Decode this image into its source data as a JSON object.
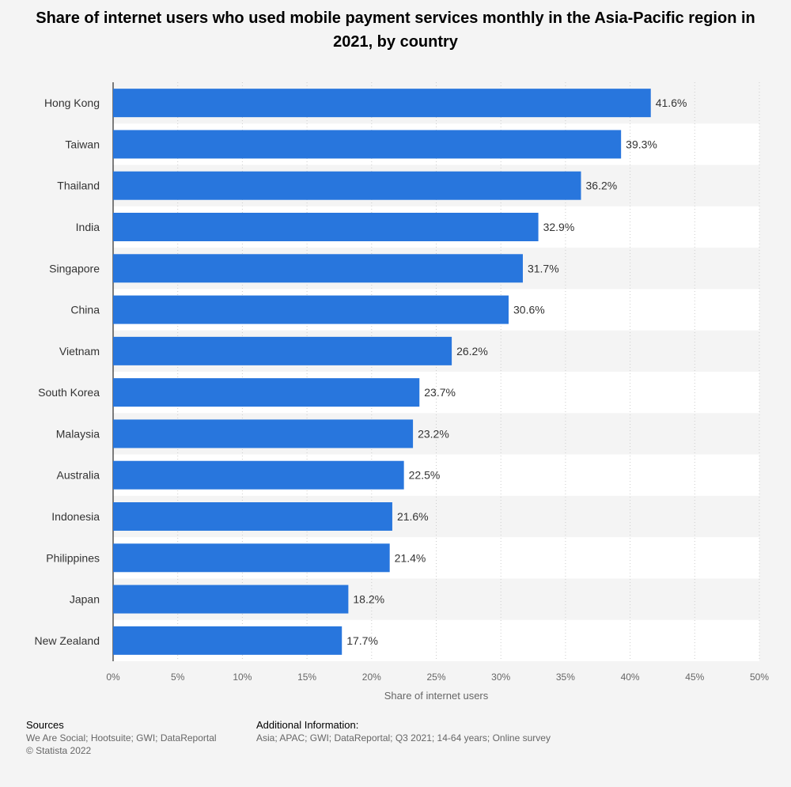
{
  "title": "Share of internet users who used mobile payment services monthly in the Asia-Pacific region in 2021, by country",
  "chart_data": {
    "type": "bar",
    "orientation": "horizontal",
    "categories": [
      "Hong Kong",
      "Taiwan",
      "Thailand",
      "India",
      "Singapore",
      "China",
      "Vietnam",
      "South Korea",
      "Malaysia",
      "Australia",
      "Indonesia",
      "Philippines",
      "Japan",
      "New Zealand"
    ],
    "values": [
      41.6,
      39.3,
      36.2,
      32.9,
      31.7,
      30.6,
      26.2,
      23.7,
      23.2,
      22.5,
      21.6,
      21.4,
      18.2,
      17.7
    ],
    "value_labels": [
      "41.6%",
      "39.3%",
      "36.2%",
      "32.9%",
      "31.7%",
      "30.6%",
      "26.2%",
      "23.7%",
      "23.2%",
      "22.5%",
      "21.6%",
      "21.4%",
      "18.2%",
      "17.7%"
    ],
    "xlabel": "Share of internet users",
    "ylabel": "",
    "xlim": [
      0,
      50
    ],
    "xticks": [
      0,
      5,
      10,
      15,
      20,
      25,
      30,
      35,
      40,
      45,
      50
    ],
    "xtick_labels": [
      "0%",
      "5%",
      "10%",
      "15%",
      "20%",
      "25%",
      "30%",
      "35%",
      "40%",
      "45%",
      "50%"
    ],
    "grid": true,
    "legend": "none",
    "bar_color": "#2876dd"
  },
  "footer": {
    "sources_heading": "Sources",
    "sources_text": "We Are Social; Hootsuite; GWI; DataReportal",
    "copyright": "© Statista 2022",
    "additional_heading": "Additional Information:",
    "additional_text": "Asia; APAC; GWI; DataReportal; Q3 2021; 14-64 years; Online survey"
  }
}
